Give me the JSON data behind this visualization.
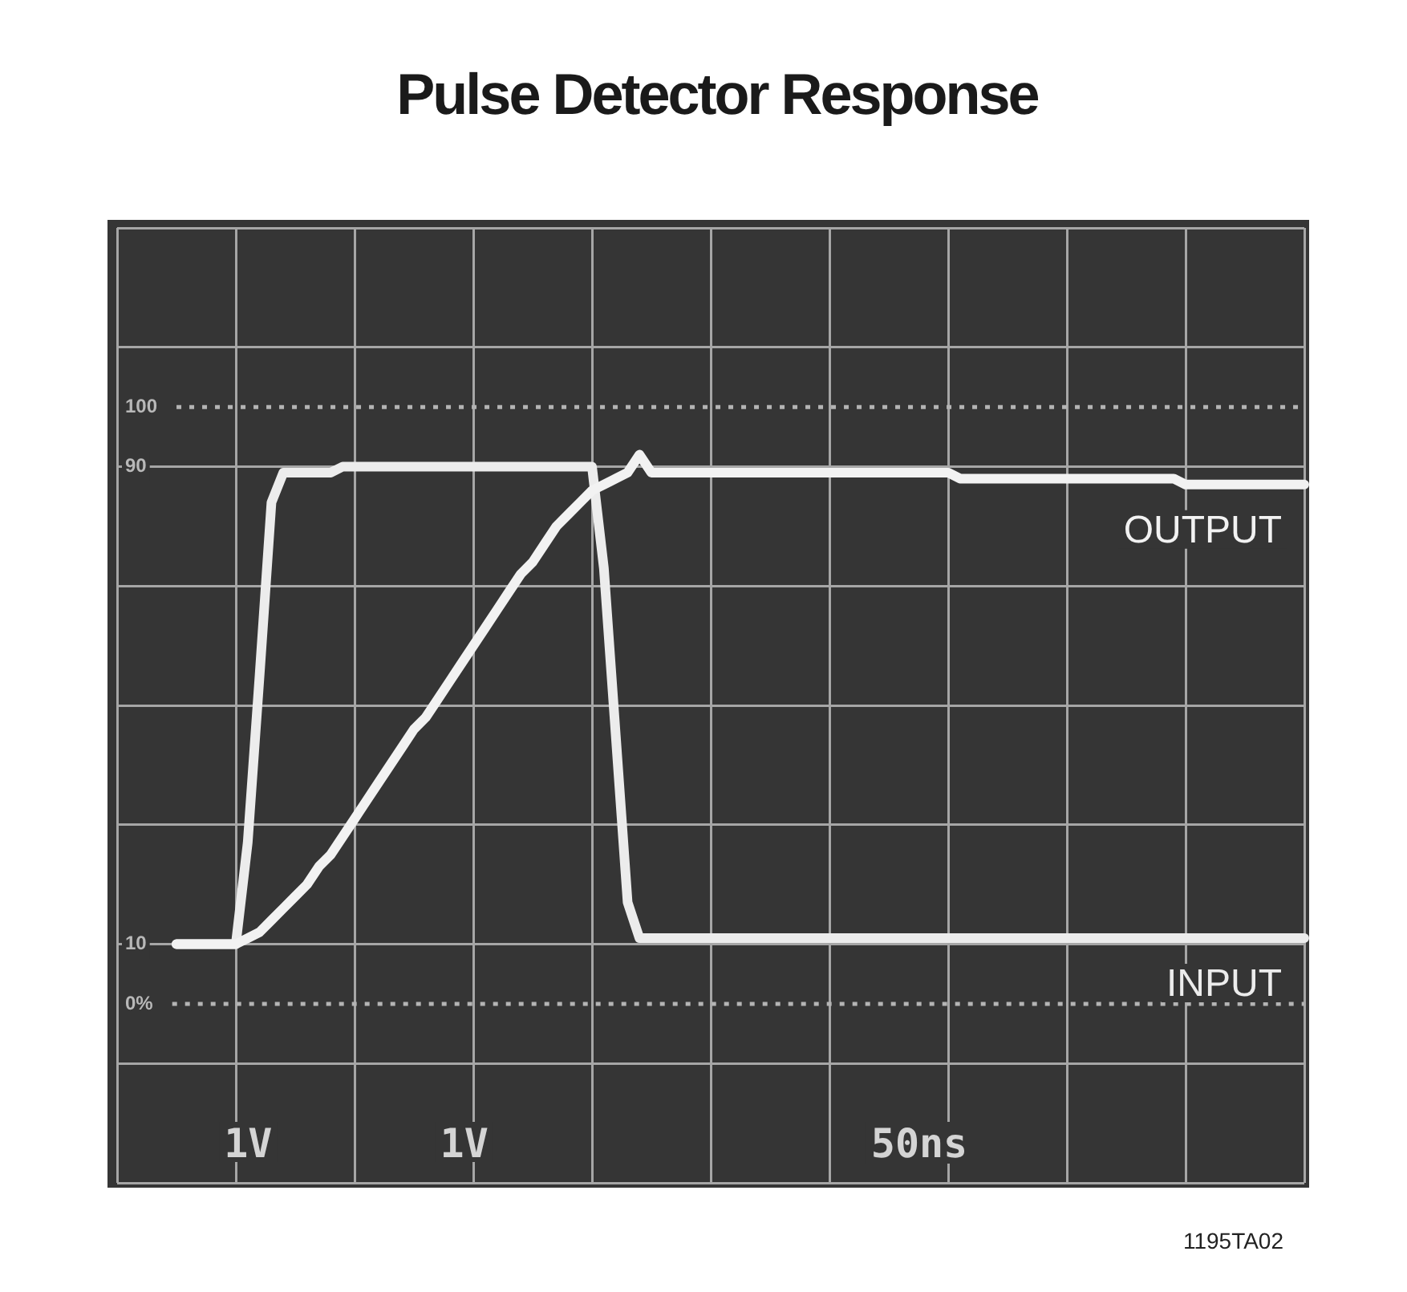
{
  "chart_data": {
    "type": "line",
    "title": "Pulse Detector Response",
    "categories": [
      null,
      null,
      null,
      null,
      null,
      null,
      null,
      null,
      null,
      null,
      null,
      null,
      null,
      null,
      null,
      null,
      null,
      null,
      null,
      null,
      null,
      null,
      null,
      null,
      null,
      null,
      null,
      null,
      null,
      null,
      null,
      null,
      null,
      null,
      null,
      null,
      null,
      null,
      null,
      null,
      null,
      null,
      null,
      null,
      null,
      null,
      null,
      null,
      null,
      null,
      null,
      null,
      null,
      null,
      null,
      null,
      null,
      null,
      null,
      null,
      null,
      null,
      null,
      null,
      null,
      null,
      null,
      null,
      null,
      null,
      null,
      null,
      null,
      null,
      null,
      null,
      null,
      null,
      null,
      null,
      null,
      null,
      null,
      null,
      null,
      null,
      null,
      null,
      null,
      null,
      null,
      null,
      null,
      null,
      null,
      null,
      null,
      null,
      null,
      null,
      null
    ],
    "ylim": [
      -30,
      130
    ],
    "yticks": [
      {
        "value": -30,
        "label": null
      },
      {
        "value": -10,
        "label": null
      },
      10,
      {
        "value": 30,
        "label": null
      },
      {
        "value": 50,
        "label": null
      },
      {
        "value": 70,
        "label": null
      },
      90,
      {
        "value": 110,
        "label": null
      },
      {
        "value": 130,
        "label": null
      }
    ],
    "tick_labels": "y",
    "grid": true,
    "legend": false,
    "marker": "none",
    "line_style": "solid",
    "ref_lines": [
      {
        "axis": "y",
        "value": 100,
        "label": "100",
        "line_style": "dotted",
        "color": "#b4b4b4"
      },
      {
        "axis": "y",
        "value": 0,
        "label": "0%",
        "line_style": "dotted",
        "color": "#b4b4b4"
      }
    ],
    "series": [
      {
        "name": "OUTPUT",
        "color": "#f2f2f2",
        "values": [
          null,
          null,
          null,
          null,
          null,
          10,
          10,
          10,
          10,
          10,
          10,
          11,
          12,
          14,
          16,
          18,
          20,
          23,
          25,
          28,
          31,
          34,
          37,
          40,
          43,
          46,
          48,
          51,
          54,
          57,
          60,
          63,
          66,
          69,
          72,
          74,
          77,
          80,
          82,
          84,
          86,
          87,
          88,
          89,
          92,
          89,
          89,
          89,
          89,
          89,
          89,
          89,
          89,
          89,
          89,
          89,
          89,
          89,
          89,
          89,
          89,
          89,
          89,
          89,
          89,
          89,
          89,
          89,
          89,
          89,
          89,
          88,
          88,
          88,
          88,
          88,
          88,
          88,
          88,
          88,
          88,
          88,
          88,
          88,
          88,
          88,
          88,
          88,
          88,
          88,
          87,
          87,
          87,
          87,
          87,
          87,
          87,
          87,
          87,
          87,
          87
        ]
      },
      {
        "name": "INPUT",
        "color": "#ececec",
        "values": [
          null,
          null,
          null,
          null,
          null,
          10,
          10,
          10,
          10,
          10,
          10,
          27,
          55,
          84,
          89,
          89,
          89,
          89,
          89,
          90,
          90,
          90,
          90,
          90,
          90,
          90,
          90,
          90,
          90,
          90,
          90,
          90,
          90,
          90,
          90,
          90,
          90,
          90,
          90,
          90,
          90,
          73,
          45,
          17,
          11,
          11,
          11,
          11,
          11,
          11,
          11,
          11,
          11,
          11,
          11,
          11,
          11,
          11,
          11,
          11,
          11,
          11,
          11,
          11,
          11,
          11,
          11,
          11,
          11,
          11,
          11,
          11,
          11,
          11,
          11,
          11,
          11,
          11,
          11,
          11,
          11,
          11,
          11,
          11,
          11,
          11,
          11,
          11,
          11,
          11,
          11,
          11,
          11,
          11,
          11,
          11,
          11,
          11,
          11,
          11,
          11
        ]
      }
    ],
    "annotations": [
      "1V",
      "1V",
      "50ns",
      "1195TA02"
    ]
  }
}
